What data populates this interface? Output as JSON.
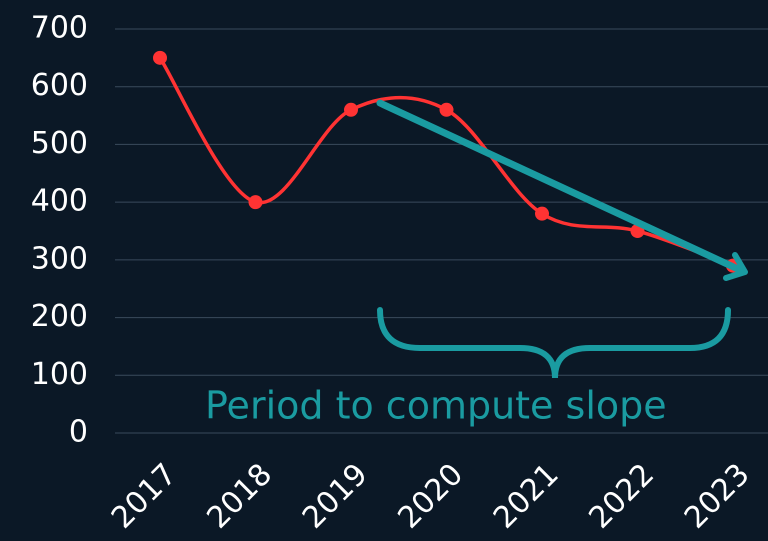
{
  "chart_data": {
    "type": "line",
    "categories": [
      "2017",
      "2018",
      "2019",
      "2020",
      "2021",
      "2022",
      "2023"
    ],
    "series": [
      {
        "color": "#ff3333",
        "values": [
          650,
          400,
          560,
          560,
          380,
          350,
          290
        ]
      }
    ],
    "ylim": [
      0,
      700
    ],
    "yticks": [
      0,
      100,
      200,
      300,
      400,
      500,
      600,
      700
    ],
    "grid": true,
    "annotation": "Period to compute slope",
    "annotation_color": "#1a9ba1"
  }
}
